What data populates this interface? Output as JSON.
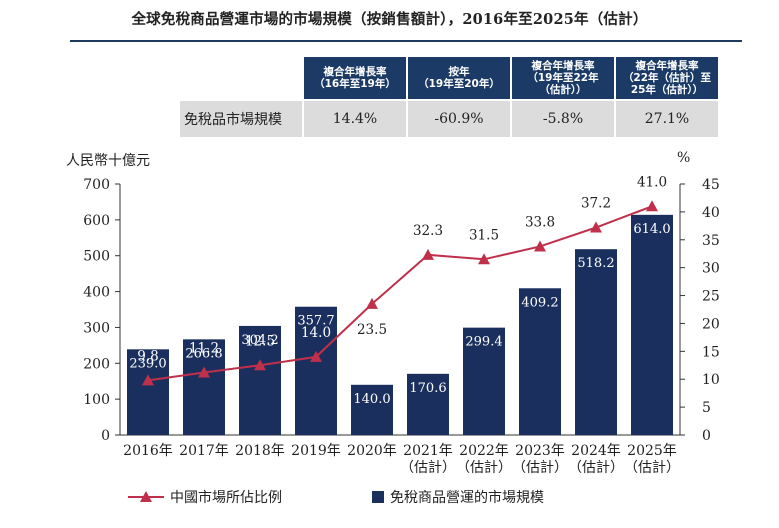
{
  "title": "全球免稅商品營運市場的市場規模（按銷售額計），2016年至2025年（估計）",
  "cagr_table": {
    "headers": [
      "複合年增長率\n（16年至19年）",
      "按年\n（19年至20年）",
      "複合年增長率\n（19年至22年\n（估計））",
      "複合年增長率\n（22年（估計）至\n25年（估計））"
    ],
    "row_label": "免稅品市場規模",
    "values": [
      "14.4%",
      "-60.9%",
      "-5.8%",
      "27.1%"
    ]
  },
  "chart_data": {
    "type": "bar",
    "title": "全球免稅商品營運市場的市場規模（按銷售額計），2016年至2025年（估計）",
    "categories": [
      "2016年",
      "2017年",
      "2018年",
      "2019年",
      "2020年",
      "2021年\n（估計）",
      "2022年\n（估計）",
      "2023年\n（估計）",
      "2024年\n（估計）",
      "2025年\n（估計）"
    ],
    "ylabel": "人民幣十億元",
    "ylim": [
      0,
      700
    ],
    "yticks": [
      0,
      100,
      200,
      300,
      400,
      500,
      600,
      700
    ],
    "y2label": "%",
    "y2lim": [
      0,
      45
    ],
    "y2ticks": [
      0,
      5,
      10,
      15,
      20,
      25,
      30,
      35,
      40,
      45
    ],
    "series": [
      {
        "name": "免稅商品營運的市場規模",
        "type": "bar",
        "axis": "left",
        "values": [
          239.0,
          266.8,
          304.2,
          357.7,
          140.0,
          170.6,
          299.4,
          409.2,
          518.2,
          614.0
        ],
        "labels": [
          "239.0",
          "266.8",
          "304.2",
          "357.7",
          "140.0",
          "170.6",
          "299.4",
          "409.2",
          "518.2",
          "614.0"
        ],
        "color": "#1b2f5e"
      },
      {
        "name": "中國市場所佔比例",
        "type": "line",
        "axis": "right",
        "values": [
          9.8,
          11.2,
          12.5,
          14.0,
          23.5,
          32.3,
          31.5,
          33.8,
          37.2,
          41.0
        ],
        "labels": [
          "9.8",
          "11.2",
          "12.5",
          "14.0",
          "23.5",
          "32.3",
          "31.5",
          "33.8",
          "37.2",
          "41.0"
        ],
        "color": "#c0304a"
      }
    ],
    "legend": {
      "line_label": "中國市場所佔比例",
      "bar_label": "免稅商品營運的市場規模",
      "position": "bottom"
    }
  }
}
